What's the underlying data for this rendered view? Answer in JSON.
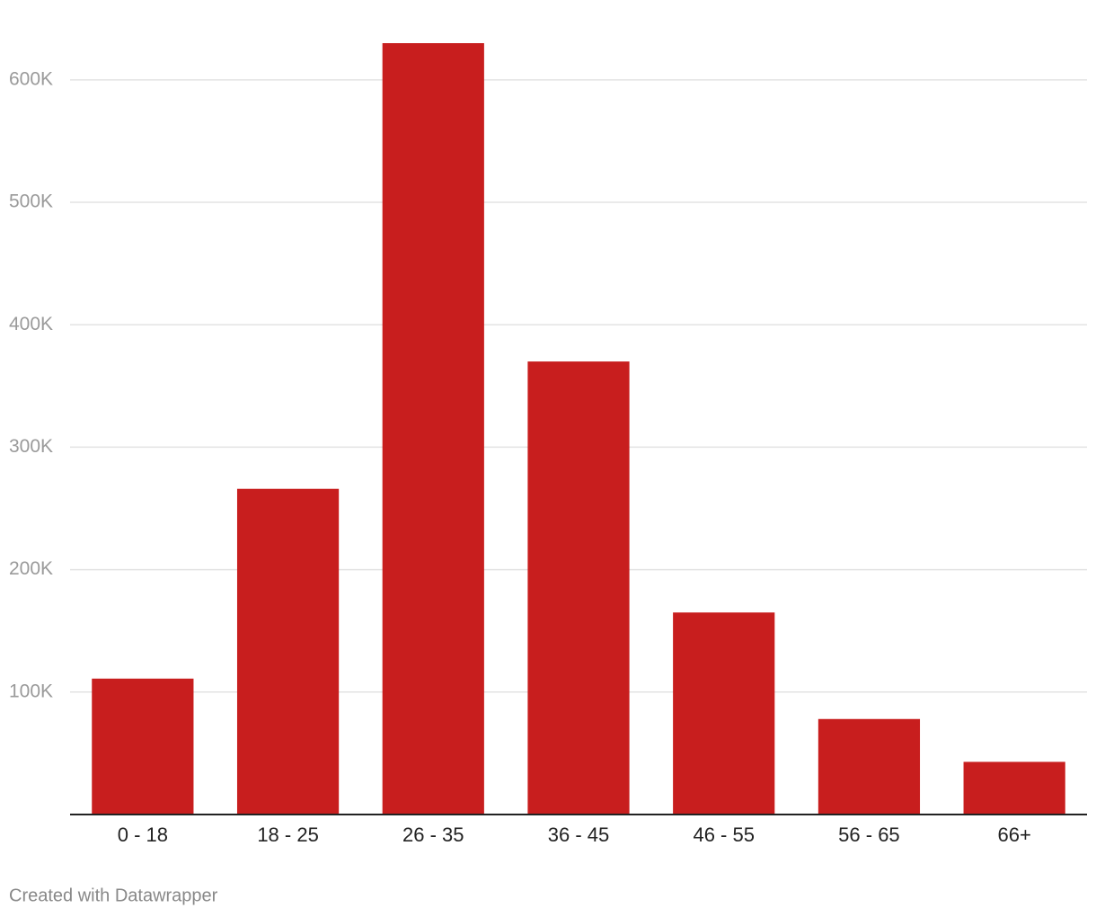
{
  "chart_data": {
    "type": "bar",
    "categories": [
      "0 - 18",
      "18 - 25",
      "26 - 35",
      "36 - 45",
      "46 - 55",
      "56 - 65",
      "66+"
    ],
    "values": [
      111000,
      266000,
      630000,
      370000,
      165000,
      78000,
      43000
    ],
    "color": "#c81e1e",
    "ylim": [
      0,
      630000
    ],
    "yticks": [
      {
        "value": 100000,
        "label": "100K"
      },
      {
        "value": 200000,
        "label": "200K"
      },
      {
        "value": 300000,
        "label": "300K"
      },
      {
        "value": 400000,
        "label": "400K"
      },
      {
        "value": 500000,
        "label": "500K"
      },
      {
        "value": 600000,
        "label": "600K"
      }
    ],
    "grid": true,
    "credit": "Created with Datawrapper"
  }
}
